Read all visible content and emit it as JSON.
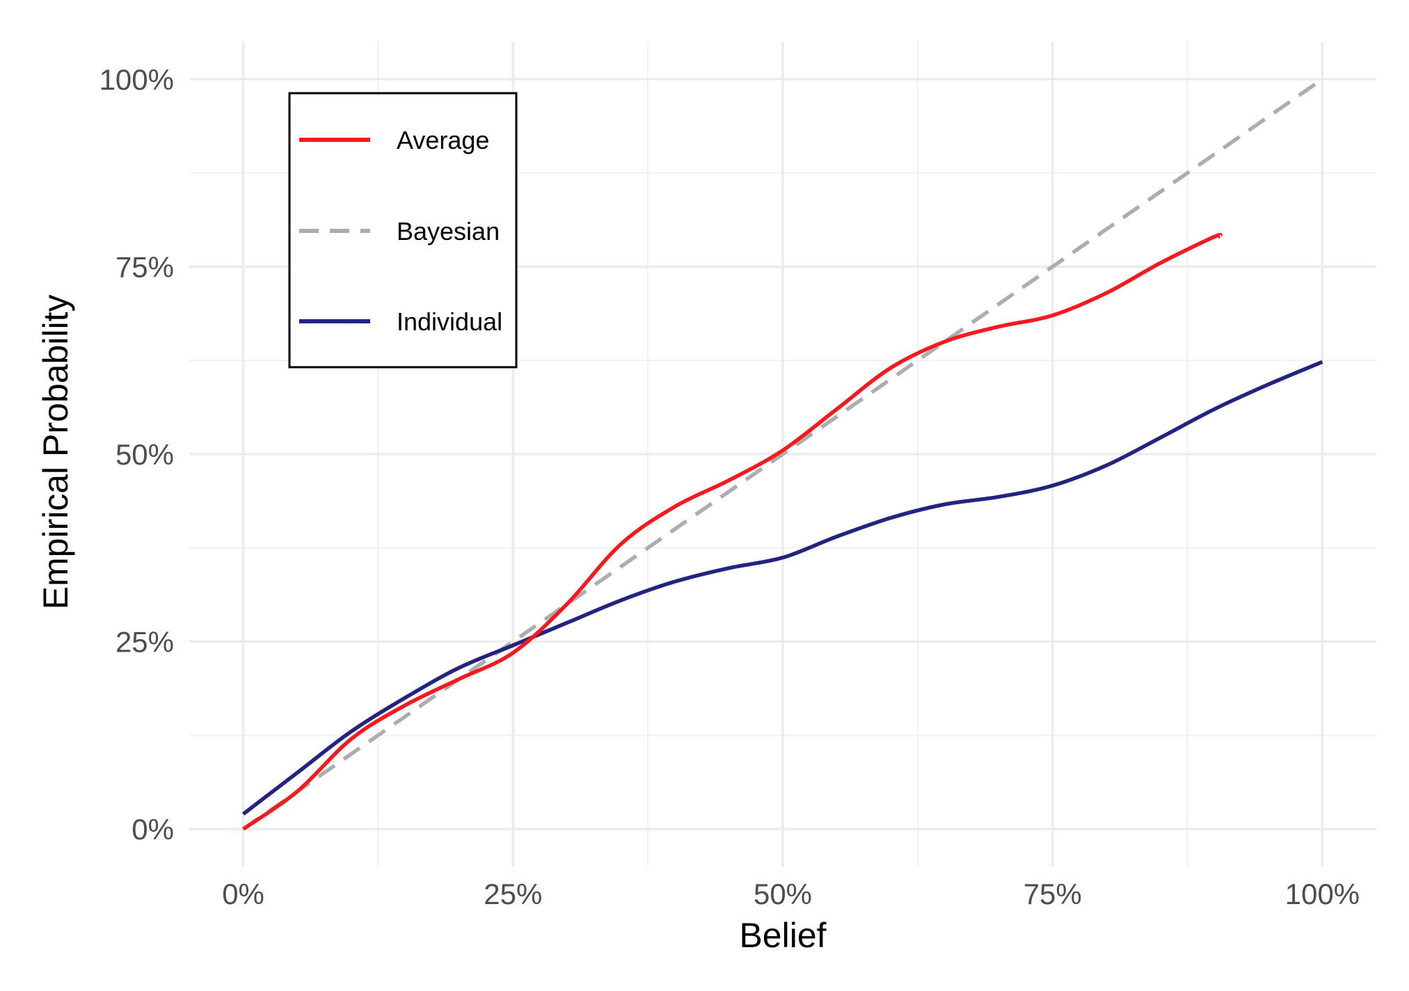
{
  "chart_data": {
    "type": "line",
    "title": "",
    "xlabel": "Belief",
    "ylabel": "Empirical Probability",
    "xlim": [
      -0.05,
      1.05
    ],
    "ylim": [
      -0.05,
      1.05
    ],
    "x_ticks": [
      0,
      0.25,
      0.5,
      0.75,
      1
    ],
    "x_tick_labels": [
      "0%",
      "25%",
      "50%",
      "75%",
      "100%"
    ],
    "y_ticks": [
      0,
      0.25,
      0.5,
      0.75,
      1
    ],
    "y_tick_labels": [
      "0%",
      "25%",
      "50%",
      "75%",
      "100%"
    ],
    "grid": true,
    "legend_position": "top-left",
    "series": [
      {
        "name": "Average",
        "color": "#f8191e",
        "dash": "solid",
        "x": [
          0,
          0.05,
          0.1,
          0.15,
          0.2,
          0.25,
          0.3,
          0.35,
          0.4,
          0.45,
          0.5,
          0.55,
          0.6,
          0.65,
          0.7,
          0.75,
          0.8,
          0.85,
          0.9,
          0.905
        ],
        "y": [
          0,
          0.05,
          0.12,
          0.165,
          0.2,
          0.235,
          0.3,
          0.38,
          0.43,
          0.465,
          0.505,
          0.56,
          0.615,
          0.65,
          0.67,
          0.685,
          0.715,
          0.755,
          0.79,
          0.79
        ]
      },
      {
        "name": "Bayesian",
        "color": "#adadad",
        "dash": "dashed",
        "x": [
          0,
          1
        ],
        "y": [
          0,
          1
        ]
      },
      {
        "name": "Individual",
        "color": "#232383",
        "dash": "solid",
        "x": [
          0,
          0.05,
          0.1,
          0.15,
          0.2,
          0.25,
          0.3,
          0.35,
          0.4,
          0.45,
          0.5,
          0.55,
          0.6,
          0.65,
          0.7,
          0.75,
          0.8,
          0.85,
          0.9,
          0.95,
          1
        ],
        "y": [
          0.02,
          0.075,
          0.13,
          0.175,
          0.215,
          0.245,
          0.275,
          0.305,
          0.33,
          0.348,
          0.362,
          0.39,
          0.415,
          0.433,
          0.443,
          0.458,
          0.485,
          0.522,
          0.56,
          0.593,
          0.623
        ]
      }
    ]
  }
}
